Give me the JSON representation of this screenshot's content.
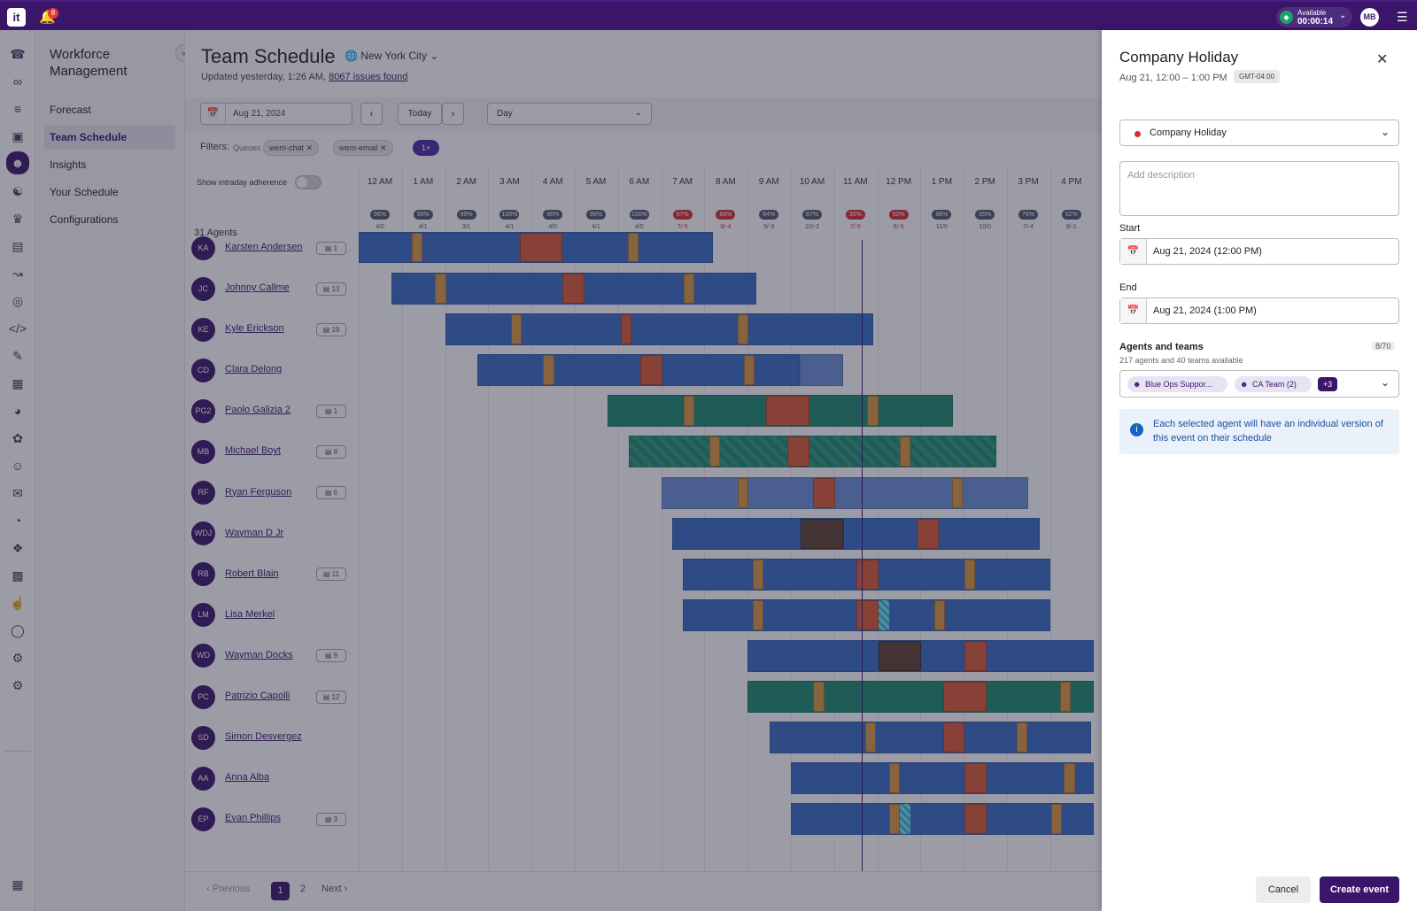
{
  "topbar": {
    "logo": "it",
    "notifications": "8",
    "status_label": "Available",
    "status_time": "00:00:14",
    "user_initials": "MB"
  },
  "sidenav": {
    "title": "Workforce Management",
    "items": [
      {
        "label": "Forecast"
      },
      {
        "label": "Team Schedule"
      },
      {
        "label": "Insights"
      },
      {
        "label": "Your Schedule"
      },
      {
        "label": "Configurations"
      }
    ]
  },
  "header": {
    "title": "Team Schedule",
    "location": "New York City",
    "updated": "Updated yesterday, 1:26 AM,",
    "issues_link": "8067 issues found"
  },
  "toolbar": {
    "date": "Aug 21, 2024",
    "today": "Today",
    "view": "Day"
  },
  "filters": {
    "label": "Filters:",
    "queues_label": "Queues",
    "chips": [
      "wem-chat",
      "wem-email"
    ],
    "more": "1+"
  },
  "intraday_label": "Show intraday adherence",
  "agent_count": "31 Agents",
  "hours": [
    "12 AM",
    "1 AM",
    "2 AM",
    "3 AM",
    "4 AM",
    "5 AM",
    "6 AM",
    "7 AM",
    "8 AM",
    "9 AM",
    "10 AM",
    "11 AM",
    "12 PM",
    "1 PM",
    "2 PM",
    "3 PM",
    "4 PM"
  ],
  "coverage": [
    {
      "pct": "96%",
      "sub": "4/0",
      "status": "ok"
    },
    {
      "pct": "99%",
      "sub": "4/1",
      "status": "ok"
    },
    {
      "pct": "99%",
      "sub": "3/1",
      "status": "ok"
    },
    {
      "pct": "100%",
      "sub": "4/1",
      "status": "ok"
    },
    {
      "pct": "96%",
      "sub": "4/0",
      "status": "ok"
    },
    {
      "pct": "99%",
      "sub": "4/1",
      "status": "ok"
    },
    {
      "pct": "100%",
      "sub": "4/0",
      "status": "ok"
    },
    {
      "pct": "67%",
      "sub": "7/-5",
      "status": "bad"
    },
    {
      "pct": "68%",
      "sub": "9/-4",
      "status": "bad"
    },
    {
      "pct": "84%",
      "sub": "9/-3",
      "status": "ok"
    },
    {
      "pct": "87%",
      "sub": "10/-2",
      "status": "ok"
    },
    {
      "pct": "35%",
      "sub": "7/-5",
      "status": "bad"
    },
    {
      "pct": "50%",
      "sub": "6/-5",
      "status": "bad"
    },
    {
      "pct": "98%",
      "sub": "11/0",
      "status": "ok"
    },
    {
      "pct": "95%",
      "sub": "10/0",
      "status": "ok"
    },
    {
      "pct": "76%",
      "sub": "7/-4",
      "status": "ok"
    },
    {
      "pct": "92%",
      "sub": "9/-1",
      "status": "ok"
    }
  ],
  "agents": [
    {
      "initials": "KA",
      "name": "Karsten Andersen",
      "badge": "1"
    },
    {
      "initials": "JC",
      "name": "Johnny Callme",
      "badge": "13"
    },
    {
      "initials": "KE",
      "name": "Kyle Erickson",
      "badge": "19"
    },
    {
      "initials": "CD",
      "name": "Clara Delong",
      "badge": ""
    },
    {
      "initials": "PG2",
      "name": "Paolo Galizia 2",
      "badge": "1"
    },
    {
      "initials": "MB",
      "name": "Michael Boyt",
      "badge": "8"
    },
    {
      "initials": "RF",
      "name": "Ryan Ferguson",
      "badge": "6"
    },
    {
      "initials": "WDJ",
      "name": "Wayman D Jr",
      "badge": ""
    },
    {
      "initials": "RB",
      "name": "Robert Blain",
      "badge": "11"
    },
    {
      "initials": "LM",
      "name": "Lisa Merkel",
      "badge": ""
    },
    {
      "initials": "WD",
      "name": "Wayman Docks",
      "badge": "9"
    },
    {
      "initials": "PC",
      "name": "Patrizio Capolli",
      "badge": "12"
    },
    {
      "initials": "SD",
      "name": "Simon Desvergez",
      "badge": ""
    },
    {
      "initials": "AA",
      "name": "Anna Alba",
      "badge": ""
    },
    {
      "initials": "EP",
      "name": "Evan Phillips",
      "badge": "3"
    }
  ],
  "pagination": {
    "previous": "Previous",
    "page1": "1",
    "page2": "2",
    "next": "Next"
  },
  "panel": {
    "title": "Company Holiday",
    "time": "Aug 21, 12:00 – 1:00 PM",
    "timezone": "GMT-04:00",
    "event_type": "Company Holiday",
    "description_placeholder": "Add description",
    "start_label": "Start",
    "start_value": "Aug 21, 2024 (12:00 PM)",
    "end_label": "End",
    "end_value": "Aug 21, 2024 (1:00 PM)",
    "agents_label": "Agents and teams",
    "agents_count": "8/70",
    "agents_sub": "217 agents and 40 teams available",
    "teams": [
      "Blue Ops Suppor...",
      "CA Team (2)"
    ],
    "teams_more": "+3",
    "info": "Each selected agent will have an individual version of this event on their schedule",
    "cancel": "Cancel",
    "create": "Create event"
  },
  "colors": {
    "brand": "#3b1569",
    "shift": "#3a6cc2",
    "break": "#d99a3f",
    "lunch": "#d95a33",
    "alert": "#d32f2f"
  }
}
